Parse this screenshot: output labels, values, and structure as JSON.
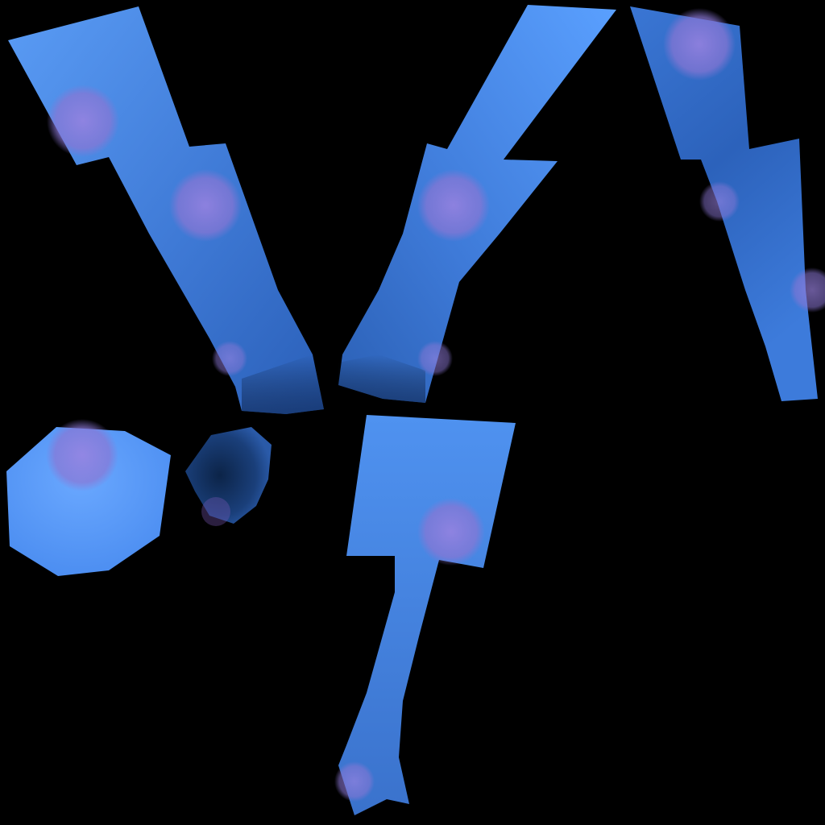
{
  "scene": {
    "background_color": "#000000",
    "colors": {
      "fabric_blue": "#4a8ae6",
      "fabric_light": "#5aa0ff",
      "fabric_dark": "#1f4f9a",
      "shadow_blue": "#0f2a5a",
      "polka_dot": "#8a78d8"
    },
    "pieces": [
      {
        "name": "left-sleeve-piece",
        "kind": "texture-fragment"
      },
      {
        "name": "center-sleeve-piece",
        "kind": "texture-fragment"
      },
      {
        "name": "right-sleeve-piece",
        "kind": "texture-fragment"
      },
      {
        "name": "round-patch",
        "kind": "texture-fragment"
      },
      {
        "name": "small-dark-patch",
        "kind": "texture-fragment"
      },
      {
        "name": "lower-tail-piece",
        "kind": "texture-fragment"
      }
    ]
  }
}
